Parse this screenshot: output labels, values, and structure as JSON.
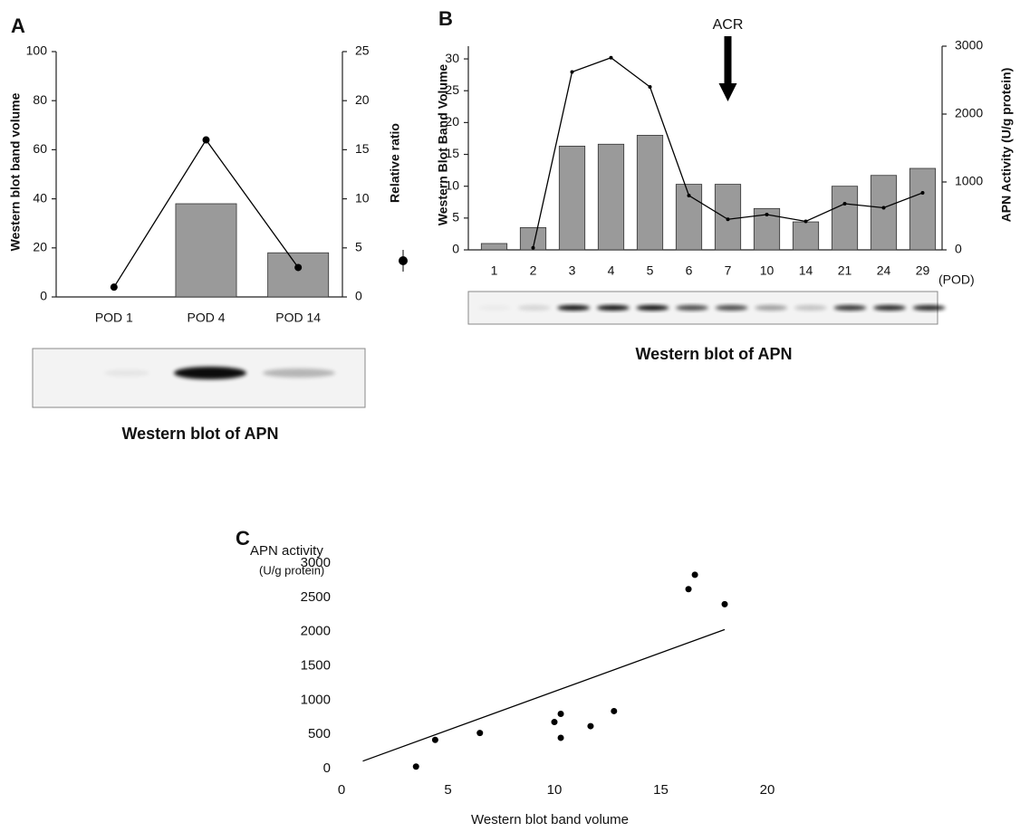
{
  "chart_data": [
    {
      "type": "bar_line",
      "panel": "A",
      "categories": [
        "POD 1",
        "POD 4",
        "POD 14"
      ],
      "series": [
        {
          "type": "bar",
          "color": "#9a9a9a",
          "values": [
            0,
            38,
            18
          ]
        },
        {
          "type": "line",
          "axis": "y2",
          "color": "#000000",
          "values": [
            1,
            16,
            3
          ]
        }
      ],
      "ylabel": "Western blot band volume",
      "y2label": "Relative ratio",
      "ylim": [
        0,
        100
      ],
      "yticks": [
        0,
        20,
        40,
        60,
        80,
        100
      ],
      "y2lim": [
        0,
        25
      ],
      "y2ticks": [
        0,
        5,
        10,
        15,
        20,
        25
      ],
      "caption": "Western blot of APN"
    },
    {
      "type": "bar_line",
      "panel": "B",
      "categories": [
        "1",
        "2",
        "3",
        "4",
        "5",
        "6",
        "7",
        "10",
        "14",
        "21",
        "24",
        "29"
      ],
      "x_unit": "(POD)",
      "series": [
        {
          "type": "bar",
          "color": "#9a9a9a",
          "values": [
            1,
            3.5,
            16.3,
            16.6,
            18,
            10.3,
            10.3,
            6.5,
            4.4,
            10,
            11.7,
            12.8
          ]
        },
        {
          "type": "line",
          "axis": "y2",
          "color": "#000000",
          "values": [
            null,
            30,
            2620,
            2830,
            2400,
            800,
            450,
            520,
            420,
            680,
            620,
            840
          ]
        }
      ],
      "ylabel": "Western Blot Band Volume",
      "y2label": "APN  Activity (U/g protein)",
      "ylim": [
        0,
        32
      ],
      "yticks": [
        0,
        5,
        10,
        15,
        20,
        25,
        30
      ],
      "y2lim": [
        0,
        3000
      ],
      "y2ticks": [
        0,
        1000,
        2000,
        3000
      ],
      "annotation": "ACR",
      "caption": "Western blot of APN"
    },
    {
      "type": "scatter",
      "panel": "C",
      "title": "APN activity",
      "subtitle": "(U/g protein)",
      "xlabel": "Western blot band volume",
      "x": [
        3.5,
        16.3,
        16.6,
        18,
        10.3,
        10.3,
        6.5,
        4.4,
        10,
        11.7,
        12.8
      ],
      "y": [
        30,
        2620,
        2830,
        2400,
        800,
        450,
        520,
        420,
        680,
        620,
        840
      ],
      "color": "#000000",
      "trendline": {
        "x": [
          1,
          18
        ],
        "y": [
          110,
          2030
        ]
      },
      "xlim": [
        0,
        20
      ],
      "xticks": [
        0,
        5,
        10,
        15,
        20
      ],
      "ylim": [
        0,
        3000
      ],
      "yticks": [
        0,
        500,
        1000,
        1500,
        2000,
        2500,
        3000
      ]
    }
  ]
}
